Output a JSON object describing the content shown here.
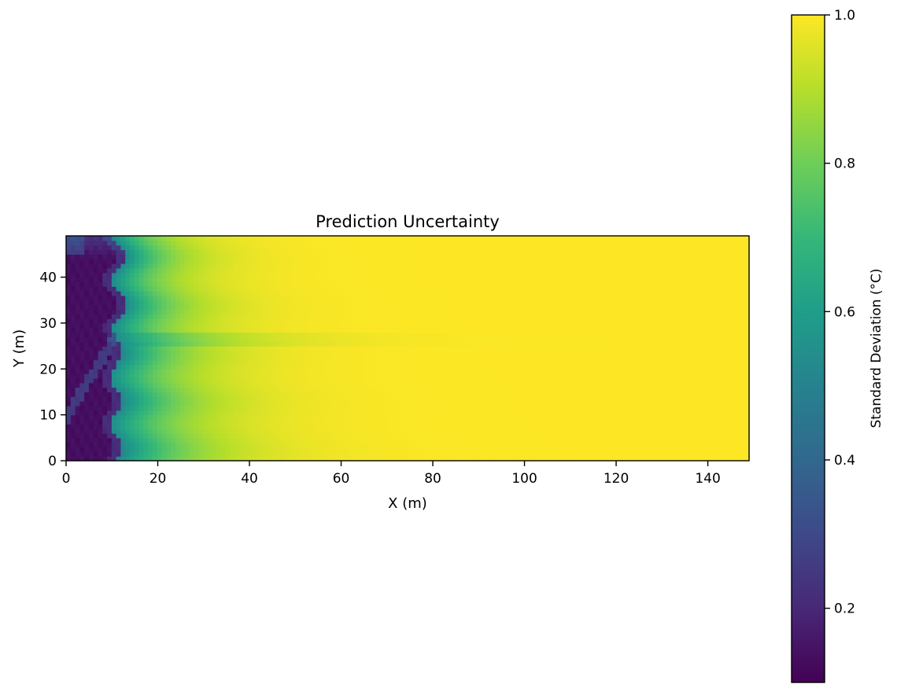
{
  "chart_data": {
    "type": "heatmap",
    "title": "Prediction Uncertainty",
    "xlabel": "X (m)",
    "ylabel": "Y (m)",
    "xlim": [
      0,
      149
    ],
    "ylim": [
      0,
      49
    ],
    "xticks": [
      {
        "value": 0,
        "label": "0"
      },
      {
        "value": 20,
        "label": "20"
      },
      {
        "value": 40,
        "label": "40"
      },
      {
        "value": 60,
        "label": "60"
      },
      {
        "value": 80,
        "label": "80"
      },
      {
        "value": 100,
        "label": "100"
      },
      {
        "value": 120,
        "label": "120"
      },
      {
        "value": 140,
        "label": "140"
      }
    ],
    "yticks": [
      {
        "value": 0,
        "label": "0"
      },
      {
        "value": 10,
        "label": "10"
      },
      {
        "value": 20,
        "label": "20"
      },
      {
        "value": 30,
        "label": "30"
      },
      {
        "value": 40,
        "label": "40"
      }
    ],
    "colormap": "viridis",
    "colorbar": {
      "label": "Standard Deviation (°C)",
      "range": [
        0.1,
        1.0
      ],
      "ticks": [
        {
          "value": 0.2,
          "label": "0.2"
        },
        {
          "value": 0.4,
          "label": "0.4"
        },
        {
          "value": 0.6,
          "label": "0.6"
        },
        {
          "value": 0.8,
          "label": "0.8"
        },
        {
          "value": 1.0,
          "label": "1.0"
        }
      ]
    },
    "grid": false,
    "field_summary": {
      "low_region_x_max": 12,
      "low_value": 0.12,
      "high_value": 1.0,
      "saturated_beyond_x": 65,
      "sample_profile_y": [
        {
          "x": 5,
          "value": 0.15
        },
        {
          "x": 15,
          "value": 0.55
        },
        {
          "x": 25,
          "value": 0.78
        },
        {
          "x": 35,
          "value": 0.88
        },
        {
          "x": 45,
          "value": 0.95
        },
        {
          "x": 60,
          "value": 0.99
        },
        {
          "x": 80,
          "value": 1.0
        }
      ]
    }
  }
}
